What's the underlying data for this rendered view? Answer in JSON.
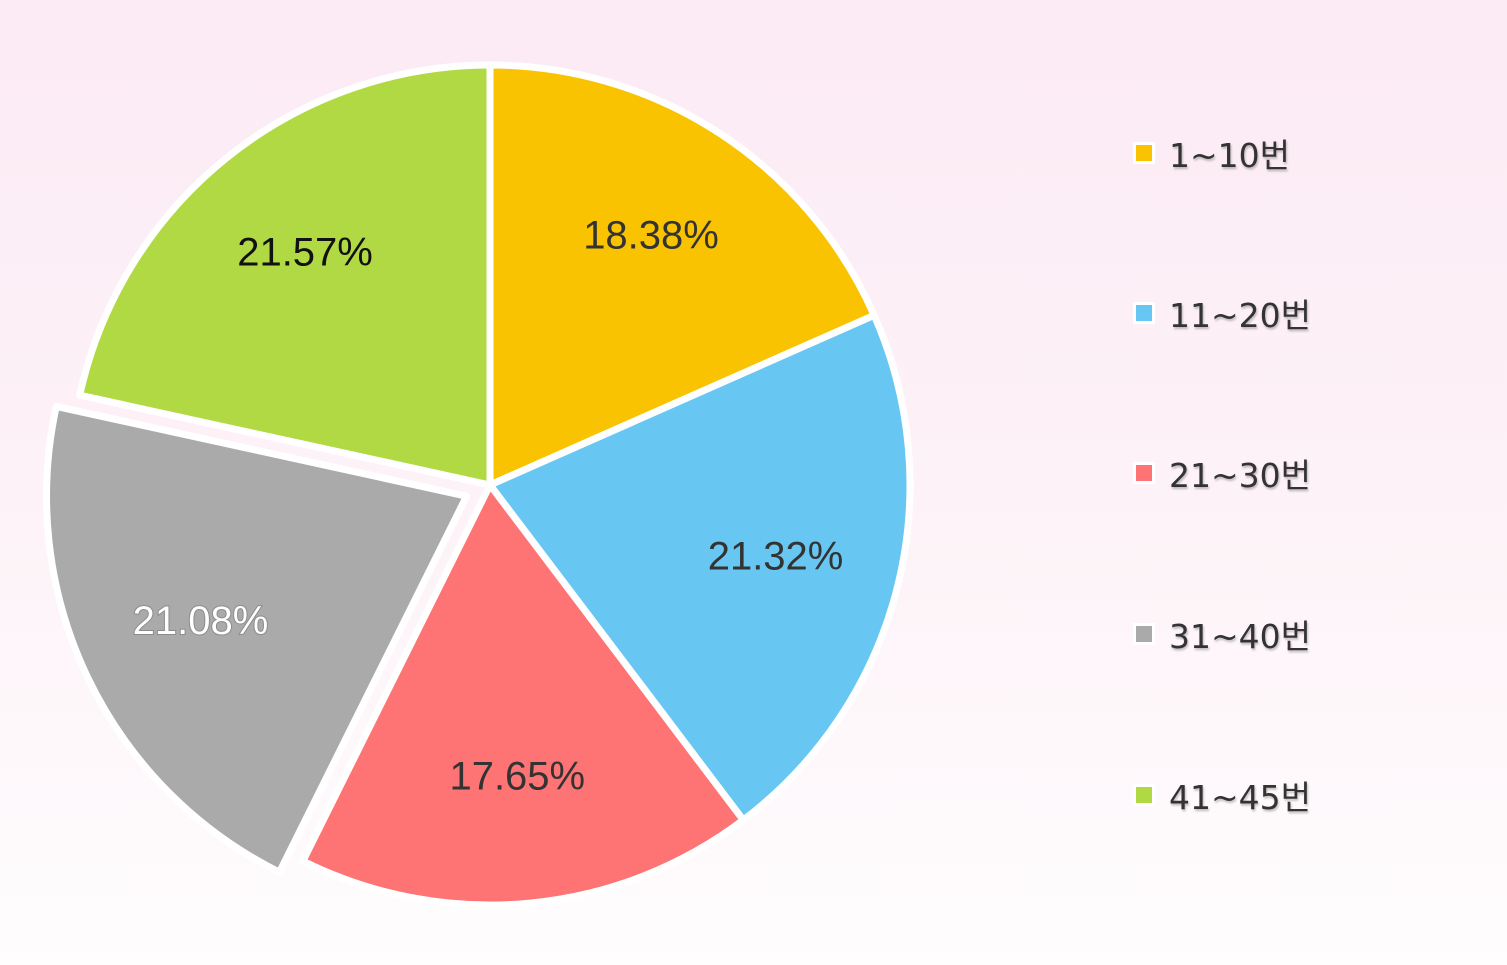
{
  "chart_data": {
    "type": "pie",
    "start_angle_deg": 0,
    "direction": "clockwise",
    "exploded_slice": "31~40번",
    "legend_position": "right",
    "slices": [
      {
        "label": "1~10번",
        "value": 18.38,
        "display": "18.38%",
        "color": "#f9c301",
        "text_color": "#333333"
      },
      {
        "label": "11~20번",
        "value": 21.32,
        "display": "21.32%",
        "color": "#68c7f2",
        "text_color": "#333333"
      },
      {
        "label": "21~30번",
        "value": 17.65,
        "display": "17.65%",
        "color": "#fe7373",
        "text_color": "#333333"
      },
      {
        "label": "31~40번",
        "value": 21.08,
        "display": "21.08%",
        "color": "#aaaaaa",
        "text_color": "#ffffff"
      },
      {
        "label": "41~45번",
        "value": 21.57,
        "display": "21.57%",
        "color": "#b1d943",
        "text_color": "#111111"
      }
    ]
  }
}
